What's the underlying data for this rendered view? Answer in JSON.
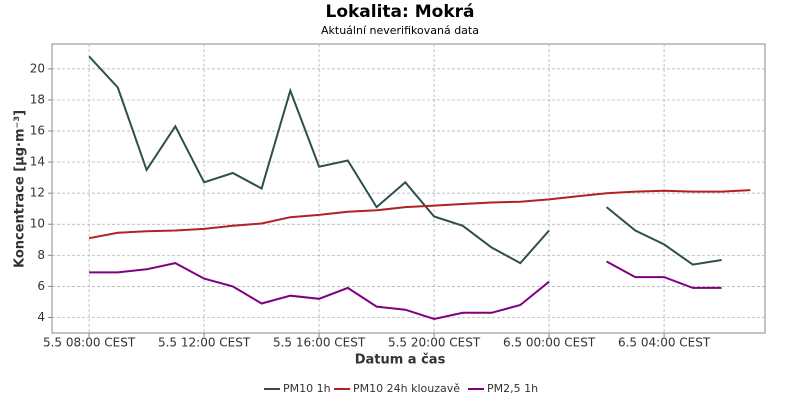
{
  "chart_data": {
    "type": "line",
    "title": "Lokalita: Mokrá",
    "subtitle": "Aktuální neverifikovaná data",
    "x_label": "Datum a čas",
    "y_label": "Koncentrace [µg·m⁻³]",
    "categories": [
      "5.5 08:00 CEST",
      null,
      null,
      null,
      "5.5 12:00 CEST",
      null,
      null,
      null,
      "5.5 16:00 CEST",
      null,
      null,
      null,
      "5.5 20:00 CEST",
      null,
      null,
      null,
      "6.5 00:00 CEST",
      null,
      null,
      null,
      "6.5 04:00 CEST",
      null,
      null,
      null
    ],
    "series": [
      {
        "name": "PM10 1h",
        "color": "#2f4f4f",
        "values": [
          20.8,
          18.8,
          13.5,
          16.3,
          12.7,
          13.3,
          12.3,
          18.6,
          13.7,
          14.1,
          11.1,
          12.7,
          10.5,
          9.9,
          8.5,
          7.5,
          9.6,
          null,
          11.1,
          9.6,
          8.7,
          7.4,
          7.7,
          null
        ]
      },
      {
        "name": "PM10 24h klouzavě",
        "color": "#b22222",
        "values": [
          9.1,
          9.45,
          9.55,
          9.6,
          9.7,
          9.9,
          10.05,
          10.45,
          10.6,
          10.8,
          10.9,
          11.1,
          11.2,
          11.3,
          11.4,
          11.45,
          11.6,
          11.8,
          12.0,
          12.1,
          12.15,
          12.1,
          12.1,
          12.2
        ]
      },
      {
        "name": "PM2,5 1h",
        "color": "#800080",
        "values": [
          6.9,
          6.9,
          7.1,
          7.5,
          6.5,
          6.0,
          4.9,
          5.4,
          5.2,
          5.9,
          4.7,
          4.5,
          3.9,
          4.3,
          4.3,
          4.8,
          6.3,
          null,
          7.6,
          6.6,
          6.6,
          5.9,
          5.9,
          null
        ]
      }
    ],
    "ylim": [
      3,
      21.6
    ],
    "yticks": [
      4,
      6,
      8,
      10,
      12,
      14,
      16,
      18,
      20
    ],
    "grid": true
  }
}
